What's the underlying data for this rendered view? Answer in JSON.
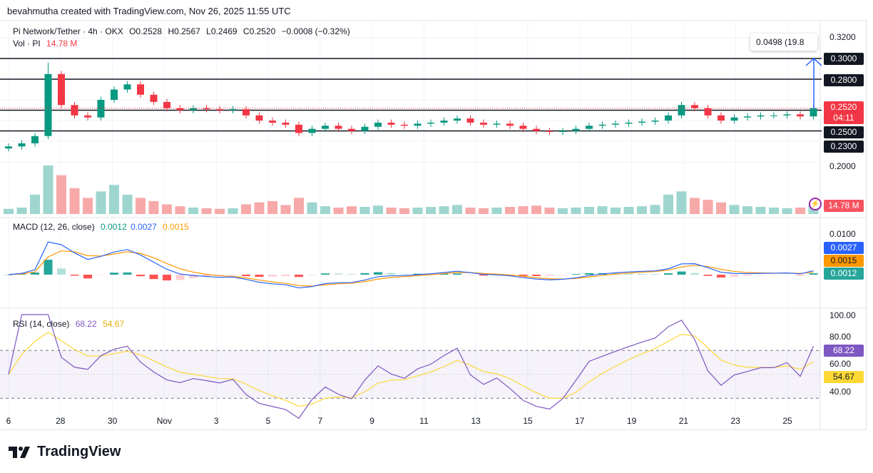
{
  "credit": "bevahmutha created with TradingView.com, Nov 26, 2025 11:55 UTC",
  "legend": {
    "symbol": "Pi Network/Tether · 4h · OKX",
    "open": "O0.2528",
    "high": "H0.2567",
    "low": "L0.2469",
    "close": "C0.2520",
    "change": "−0.0008 (−0.32%)",
    "vol_label": "Vol · PI",
    "vol_value": "14.78 M",
    "macd_label": "MACD (12, 26, close)",
    "macd_hist": "0.0012",
    "macd_line": "0.0027",
    "macd_signal": "0.0015",
    "rsi_label": "RSI (14, close)",
    "rsi_value": "68.22",
    "rsi_ma": "54.67"
  },
  "measure_tooltip": "0.0498 (19.8",
  "price_axis": {
    "ticks": [
      "0.3200",
      "0.2000"
    ],
    "current_price": "0.2520",
    "countdown": "04:11",
    "volume_tag": "14.78 M"
  },
  "horizontal_lines": [
    {
      "price": 0.3,
      "label": "0.3000"
    },
    {
      "price": 0.28,
      "label": "0.2800"
    },
    {
      "price": 0.25,
      "label": "0.2500"
    },
    {
      "price": 0.23,
      "label": "0.2300"
    }
  ],
  "macd_axis": {
    "ticks": [
      "0.0100"
    ],
    "tags": {
      "macd": "0.0027",
      "signal": "0.0015",
      "hist": "0.0012"
    }
  },
  "rsi_axis": {
    "ticks": [
      "100.00",
      "80.00",
      "60.00",
      "40.00"
    ],
    "tags": {
      "rsi": "68.22",
      "ma": "54.67"
    },
    "bands": [
      70,
      30
    ]
  },
  "time_axis": [
    "6",
    "28",
    "30",
    "Nov",
    "3",
    "5",
    "7",
    "9",
    "11",
    "13",
    "15",
    "17",
    "19",
    "21",
    "23",
    "25"
  ],
  "brand": "TradingView",
  "colors": {
    "up": "#089981",
    "down": "#f23645",
    "macd": "#2962ff",
    "signal": "#ff9800",
    "rsi": "#7e57c2",
    "rsi_ma": "#fdd835",
    "measure": "#2962ff"
  },
  "icons": [
    "lightning-icon",
    "tradingview-logo-icon"
  ],
  "chart_data": {
    "type": "candlestick",
    "interval": "4h",
    "y_range": [
      0.2,
      0.32
    ],
    "x_start": "2025-10-26",
    "x_step_hours": 12,
    "close": [
      0.215,
      0.218,
      0.225,
      0.285,
      0.255,
      0.245,
      0.243,
      0.26,
      0.27,
      0.275,
      0.265,
      0.258,
      0.252,
      0.25,
      0.252,
      0.251,
      0.25,
      0.251,
      0.245,
      0.24,
      0.238,
      0.236,
      0.228,
      0.232,
      0.235,
      0.232,
      0.23,
      0.234,
      0.238,
      0.236,
      0.235,
      0.237,
      0.238,
      0.24,
      0.242,
      0.238,
      0.236,
      0.237,
      0.235,
      0.232,
      0.23,
      0.229,
      0.23,
      0.232,
      0.235,
      0.236,
      0.237,
      0.238,
      0.239,
      0.24,
      0.245,
      0.255,
      0.252,
      0.245,
      0.24,
      0.243,
      0.244,
      0.245,
      0.245,
      0.246,
      0.244,
      0.252
    ],
    "volume_m": [
      8,
      10,
      30,
      75,
      60,
      40,
      25,
      35,
      45,
      30,
      25,
      20,
      15,
      12,
      10,
      9,
      8,
      9,
      15,
      18,
      20,
      14,
      25,
      18,
      12,
      10,
      12,
      11,
      13,
      10,
      9,
      10,
      11,
      12,
      14,
      10,
      9,
      10,
      11,
      12,
      13,
      10,
      9,
      10,
      11,
      12,
      10,
      11,
      12,
      14,
      30,
      35,
      25,
      22,
      18,
      14,
      12,
      11,
      10,
      9,
      10,
      15
    ],
    "macd_params": [
      12,
      26,
      9
    ],
    "rsi_period": 14
  }
}
